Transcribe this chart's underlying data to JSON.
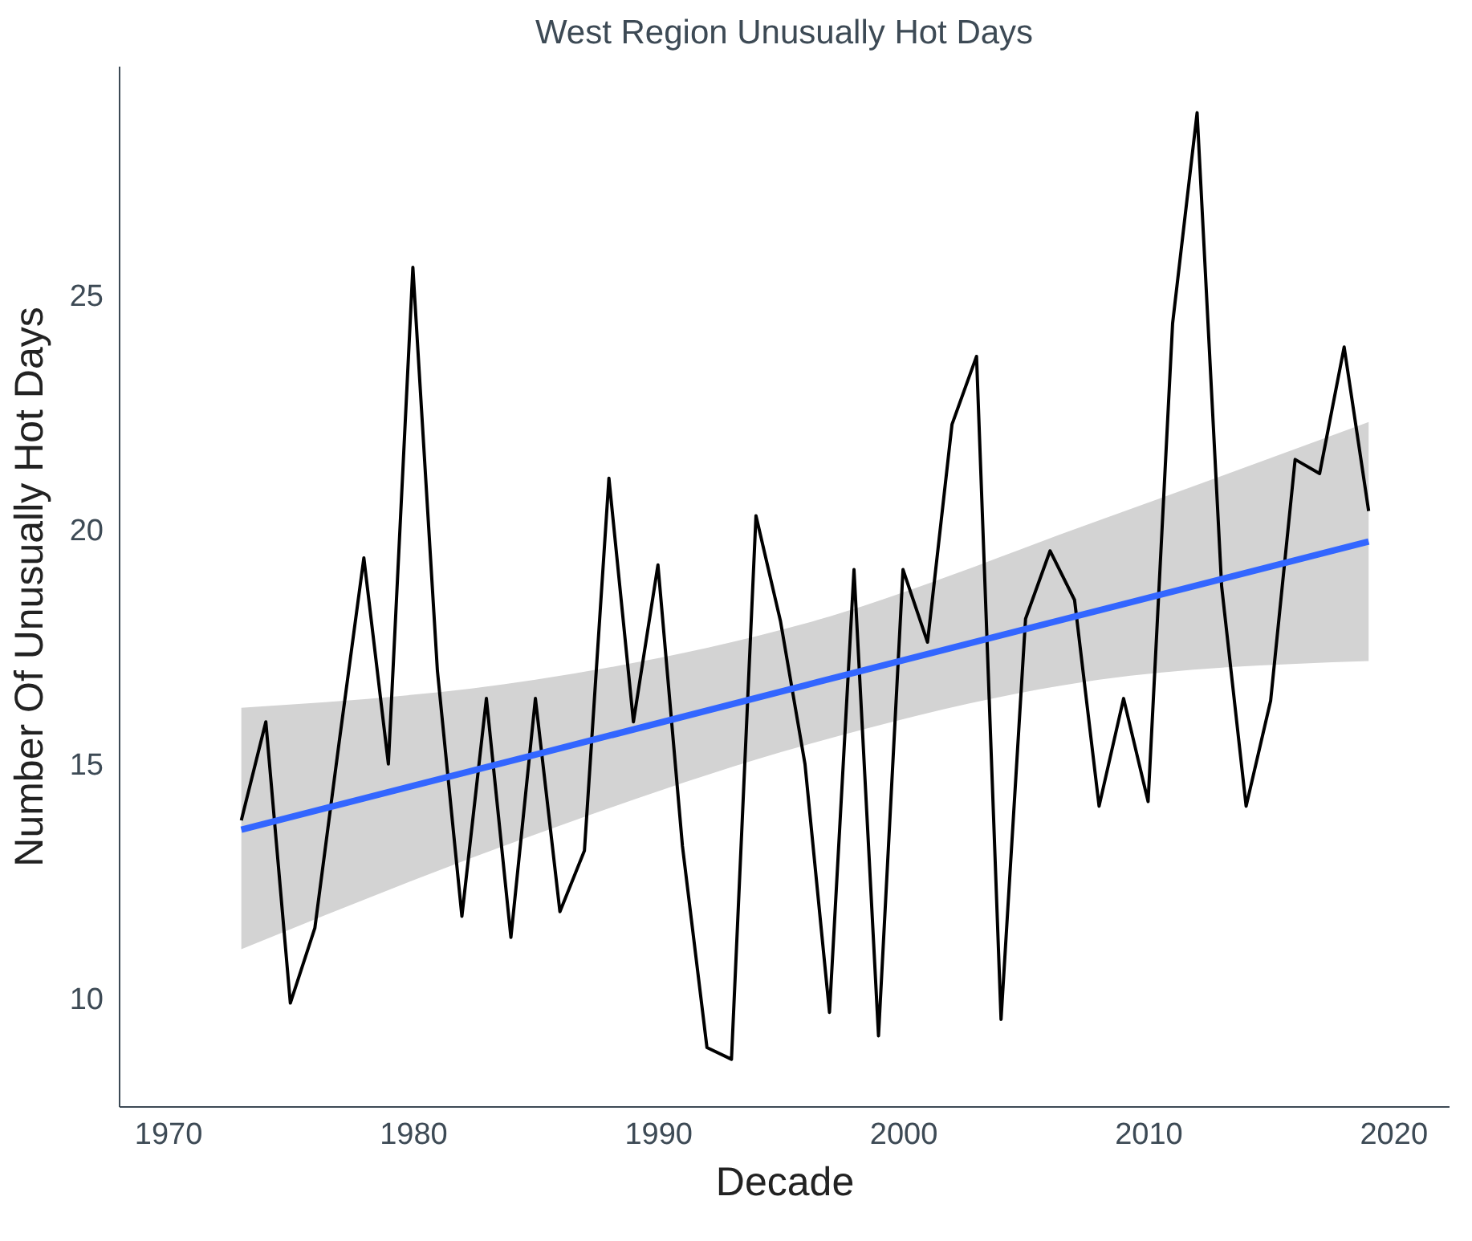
{
  "chart_data": {
    "type": "line",
    "title": "West Region Unusually Hot Days",
    "xlabel": "Decade",
    "ylabel": "Number Of Unusually Hot Days",
    "xlim": [
      1968,
      2022.3
    ],
    "ylim": [
      7.7,
      29.9
    ],
    "xticks": [
      1970,
      1980,
      1990,
      2000,
      2010,
      2020
    ],
    "yticks": [
      10,
      15,
      20,
      25
    ],
    "grid": false,
    "marker": "none",
    "line_style": "solid",
    "series": [
      {
        "color": "#000000",
        "x": [
          1973,
          1974,
          1975,
          1976,
          1977,
          1978,
          1979,
          1980,
          1981,
          1982,
          1983,
          1984,
          1985,
          1986,
          1987,
          1988,
          1989,
          1990,
          1991,
          1992,
          1993,
          1994,
          1995,
          1996,
          1997,
          1998,
          1999,
          2000,
          2001,
          2002,
          2003,
          2004,
          2005,
          2006,
          2007,
          2008,
          2009,
          2010,
          2011,
          2012,
          2013,
          2014,
          2015,
          2016,
          2017,
          2018,
          2019
        ],
        "values": [
          13.8,
          15.9,
          9.9,
          11.5,
          15.5,
          19.4,
          15.0,
          25.6,
          17.0,
          11.75,
          16.4,
          11.3,
          16.4,
          11.85,
          13.15,
          21.1,
          15.9,
          19.25,
          13.25,
          8.95,
          8.7,
          20.3,
          18.05,
          15.0,
          9.7,
          19.15,
          9.2,
          19.15,
          17.6,
          22.25,
          23.7,
          9.55,
          18.1,
          19.55,
          18.5,
          14.1,
          16.4,
          14.2,
          24.4,
          28.9,
          18.8,
          14.1,
          16.35,
          21.5,
          21.2,
          23.9,
          20.4
        ]
      },
      {
        "type": "line",
        "color": "#3366ff",
        "x": [
          1973,
          1985,
          1996,
          2008,
          2019
        ],
        "values": [
          13.6,
          15.2,
          16.68,
          18.28,
          19.75
        ],
        "lower": [
          11.05,
          13.5,
          15.4,
          16.8,
          17.2
        ],
        "upper": [
          16.2,
          16.8,
          18.0,
          20.2,
          22.3
        ]
      }
    ]
  }
}
